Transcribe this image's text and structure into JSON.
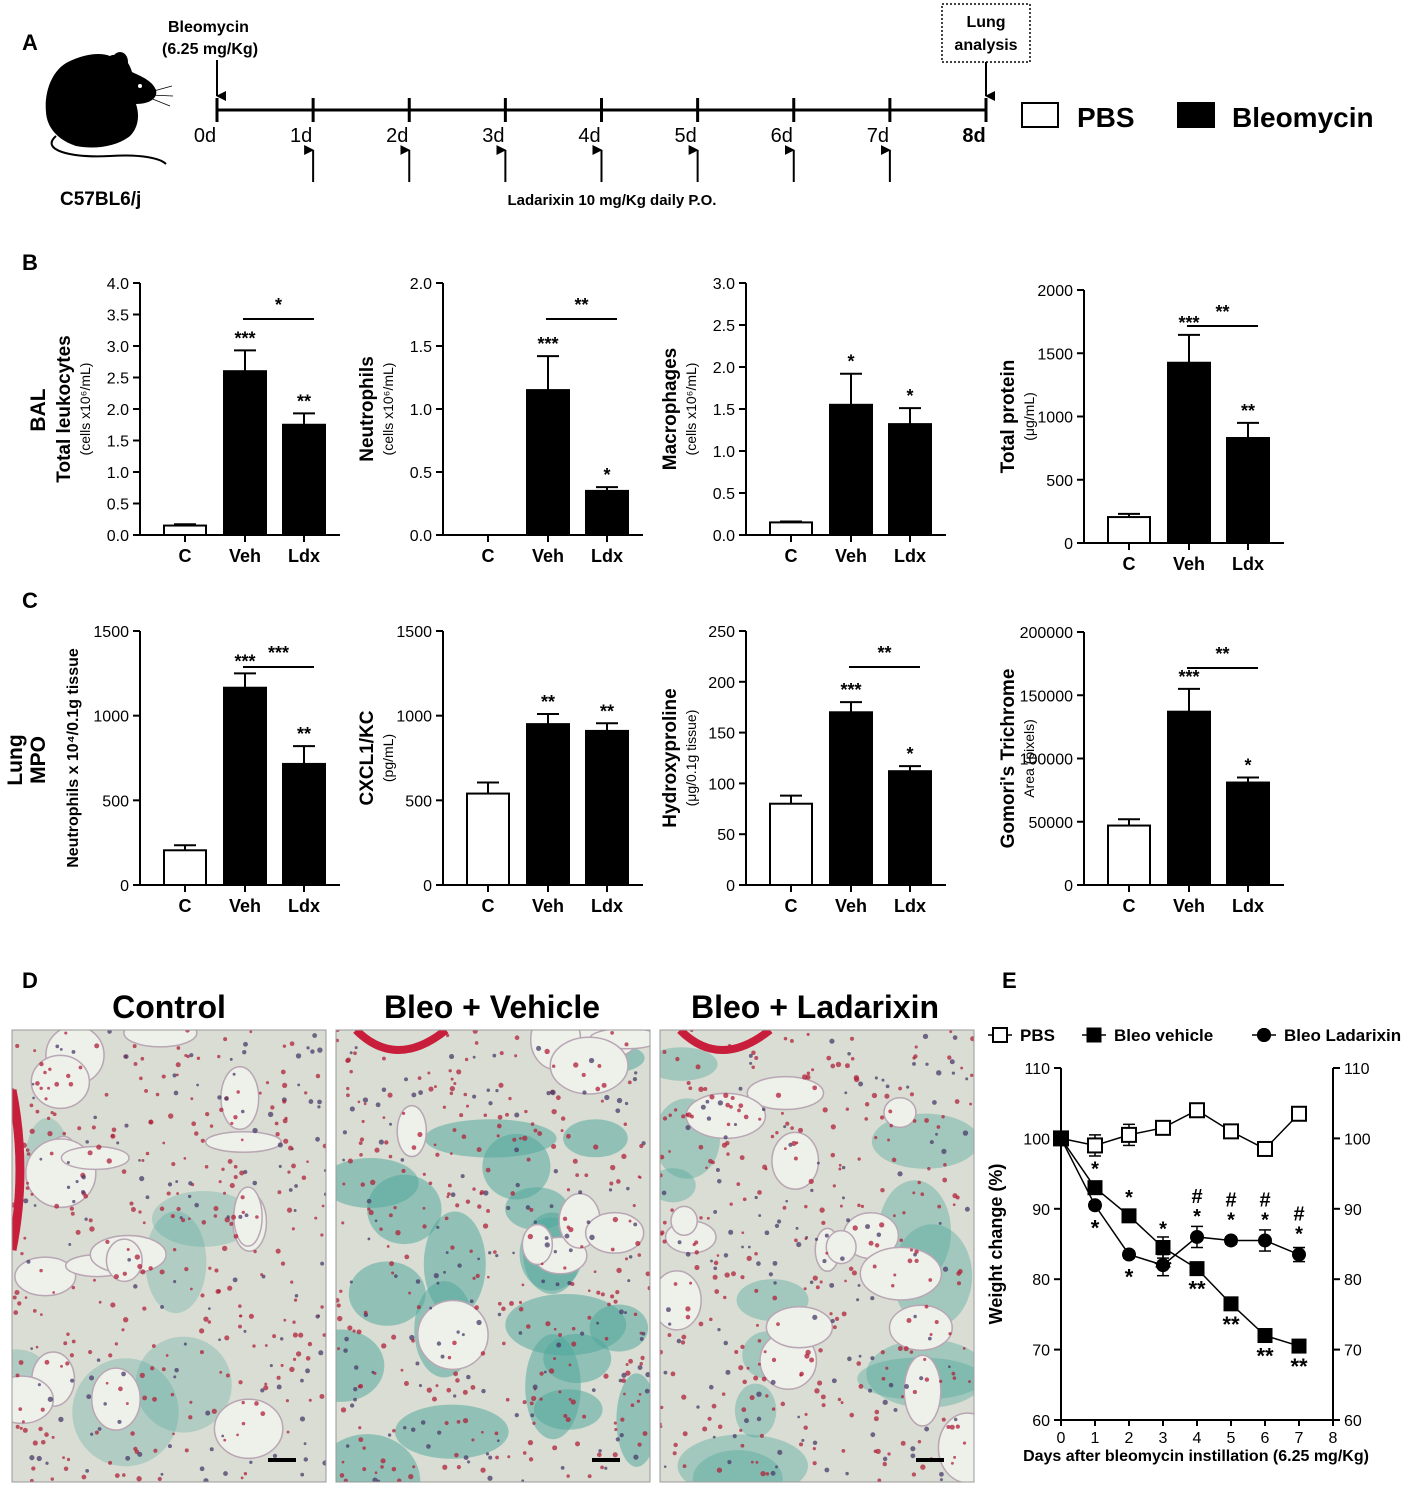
{
  "panel_letters": [
    "A",
    "B",
    "C",
    "D",
    "E"
  ],
  "panel_a": {
    "strain": "C57BL6/j",
    "bleomycin": "Bleomycin",
    "bleomycin_dose": "(6.25 mg/Kg)",
    "lung_analysis_line1": "Lung",
    "lung_analysis_line2": "analysis",
    "days": [
      "0d",
      "1d",
      "2d",
      "3d",
      "4d",
      "5d",
      "6d",
      "7d",
      "8d"
    ],
    "treatment": "Ladarixin 10 mg/Kg daily P.O.",
    "legend_pbs": "PBS",
    "legend_bleo": "Bleomycin",
    "colors": {
      "pbs": "#ffffff",
      "bleomycin": "#000000"
    }
  },
  "row_labels": {
    "bal": "BAL",
    "lung": "Lung",
    "mpo": "MPO"
  },
  "panel_d": {
    "titles": [
      "Control",
      "Bleo + Vehicle",
      "Bleo + Ladarixin"
    ],
    "stain_colors": {
      "background": "#eef0ea",
      "collagen": "#4fa79c",
      "nuclei": "#b0203a",
      "epithelium": "#c81e3c"
    }
  },
  "chart_data": [
    {
      "type": "bar",
      "title": "",
      "ylabel": "Total leukocytes",
      "ylabel_unit": "(cells x10⁶/mL)",
      "categories": [
        "C",
        "Veh",
        "Ldx"
      ],
      "values": [
        0.15,
        2.6,
        1.75
      ],
      "errors": [
        0.02,
        0.33,
        0.18
      ],
      "fills": [
        "white",
        "black",
        "black"
      ],
      "ylim": [
        0,
        4.0
      ],
      "yticks": [
        "0.0",
        "0.5",
        "1.0",
        "1.5",
        "2.0",
        "2.5",
        "3.0",
        "3.5",
        "4.0"
      ],
      "stars": [
        "",
        "***",
        "**"
      ],
      "bracket": [
        "Veh",
        "Ldx"
      ],
      "bracket_label": "*"
    },
    {
      "type": "bar",
      "title": "",
      "ylabel": "Neutrophils",
      "ylabel_unit": "(cells x10⁶/mL)",
      "categories": [
        "C",
        "Veh",
        "Ldx"
      ],
      "values": [
        0,
        1.15,
        0.35
      ],
      "errors": [
        0,
        0.27,
        0.03
      ],
      "fills": [
        "white",
        "black",
        "black"
      ],
      "ylim": [
        0,
        2.0
      ],
      "yticks": [
        "0.0",
        "0.5",
        "1.0",
        "1.5",
        "2.0"
      ],
      "stars": [
        "",
        "***",
        "*"
      ],
      "bracket": [
        "Veh",
        "Ldx"
      ],
      "bracket_label": "**"
    },
    {
      "type": "bar",
      "title": "",
      "ylabel": "Macrophages",
      "ylabel_unit": "(cells x10⁶/mL)",
      "categories": [
        "C",
        "Veh",
        "Ldx"
      ],
      "values": [
        0.15,
        1.55,
        1.32
      ],
      "errors": [
        0.01,
        0.37,
        0.19
      ],
      "fills": [
        "white",
        "black",
        "black"
      ],
      "ylim": [
        0,
        3.0
      ],
      "yticks": [
        "0.0",
        "0.5",
        "1.0",
        "1.5",
        "2.0",
        "2.5",
        "3.0"
      ],
      "stars": [
        "",
        "*",
        "*"
      ],
      "bracket": null,
      "bracket_label": ""
    },
    {
      "type": "bar",
      "title": "",
      "ylabel": "Total protein",
      "ylabel_unit": "(μg/mL)",
      "categories": [
        "C",
        "Veh",
        "Ldx"
      ],
      "values": [
        205,
        1425,
        830
      ],
      "errors": [
        25,
        220,
        120
      ],
      "fills": [
        "white",
        "black",
        "black"
      ],
      "ylim": [
        0,
        2000
      ],
      "yticks": [
        "0",
        "500",
        "1000",
        "1500",
        "2000"
      ],
      "stars": [
        "",
        "***",
        "**"
      ],
      "bracket": [
        "Veh",
        "Ldx"
      ],
      "bracket_label": "**"
    },
    {
      "type": "bar",
      "title": "",
      "ylabel": "Neutrophils x 10⁴/0.1g tissue",
      "ylabel_unit": "",
      "categories": [
        "C",
        "Veh",
        "Ldx"
      ],
      "values": [
        205,
        1165,
        715
      ],
      "errors": [
        30,
        85,
        105
      ],
      "fills": [
        "white",
        "black",
        "black"
      ],
      "ylim": [
        0,
        1500
      ],
      "yticks": [
        "0",
        "500",
        "1000",
        "1500"
      ],
      "stars": [
        "",
        "***",
        "**"
      ],
      "bracket": [
        "Veh",
        "Ldx"
      ],
      "bracket_label": "***"
    },
    {
      "type": "bar",
      "title": "",
      "ylabel": "CXCL1/KC",
      "ylabel_unit": "(pg/mL)",
      "categories": [
        "C",
        "Veh",
        "Ldx"
      ],
      "values": [
        540,
        950,
        910
      ],
      "errors": [
        65,
        60,
        45
      ],
      "fills": [
        "white",
        "black",
        "black"
      ],
      "ylim": [
        0,
        1500
      ],
      "yticks": [
        "0",
        "500",
        "1000",
        "1500"
      ],
      "stars": [
        "",
        "**",
        "**"
      ],
      "bracket": null,
      "bracket_label": ""
    },
    {
      "type": "bar",
      "title": "",
      "ylabel": "Hydroxyproline",
      "ylabel_unit": "(μg/0.1g tissue)",
      "categories": [
        "C",
        "Veh",
        "Ldx"
      ],
      "values": [
        80,
        170,
        112
      ],
      "errors": [
        8,
        10,
        5
      ],
      "fills": [
        "white",
        "black",
        "black"
      ],
      "ylim": [
        0,
        250
      ],
      "yticks": [
        "0",
        "50",
        "100",
        "150",
        "200",
        "250"
      ],
      "stars": [
        "",
        "***",
        "*"
      ],
      "bracket": [
        "Veh",
        "Ldx"
      ],
      "bracket_label": "**"
    },
    {
      "type": "bar",
      "title": "",
      "ylabel": "Gomori's Trichrome",
      "ylabel_unit": "Area (pixels)",
      "categories": [
        "C",
        "Veh",
        "Ldx"
      ],
      "values": [
        47000,
        137000,
        81000
      ],
      "errors": [
        5000,
        18000,
        4000
      ],
      "fills": [
        "white",
        "black",
        "black"
      ],
      "ylim": [
        0,
        200000
      ],
      "yticks": [
        "0",
        "50000",
        "100000",
        "150000",
        "200000"
      ],
      "stars": [
        "",
        "***",
        "*"
      ],
      "bracket": [
        "Veh",
        "Ldx"
      ],
      "bracket_label": "**"
    },
    {
      "type": "line",
      "title": "",
      "xlabel": "Days after bleomycin instillation (6.25 mg/Kg)",
      "ylabel": "Weight change (%)",
      "x": [
        0,
        1,
        2,
        3,
        4,
        5,
        6,
        7
      ],
      "xlim": [
        0,
        8
      ],
      "xticks": [
        "0",
        "1",
        "2",
        "3",
        "4",
        "5",
        "6",
        "7",
        "8"
      ],
      "ylim": [
        60,
        110
      ],
      "yticks": [
        "60",
        "70",
        "80",
        "90",
        "100",
        "110"
      ],
      "legend_position": "top",
      "series": [
        {
          "name": "PBS",
          "marker": "open-square",
          "values": [
            100,
            99,
            100.5,
            101.5,
            104,
            101,
            98.5,
            103.5
          ],
          "errors": [
            0,
            1.5,
            1.5,
            0.5,
            1.0,
            0.5,
            0.5,
            0.5
          ]
        },
        {
          "name": "Bleo vehicle",
          "marker": "filled-square",
          "values": [
            100,
            93,
            89,
            84.5,
            81.5,
            76.5,
            72,
            70.5
          ],
          "errors": [
            0,
            0.5,
            0.5,
            1.5,
            0.5,
            0.5,
            0.5,
            0.5
          ]
        },
        {
          "name": "Bleo Ladarixin",
          "marker": "filled-circle",
          "values": [
            100,
            90.5,
            83.5,
            82,
            86,
            85.5,
            85.5,
            83.5
          ],
          "errors": [
            0,
            0.5,
            0.5,
            1.5,
            1.5,
            0.5,
            1.5,
            1.0
          ]
        }
      ],
      "annotations_above": [
        "",
        "*",
        "*",
        "*",
        "#\n*",
        "#\n*",
        "#\n*",
        "#\n*"
      ],
      "annotations_below": [
        "",
        "*",
        "*",
        "**",
        "**",
        "**",
        "**",
        "**"
      ]
    }
  ]
}
